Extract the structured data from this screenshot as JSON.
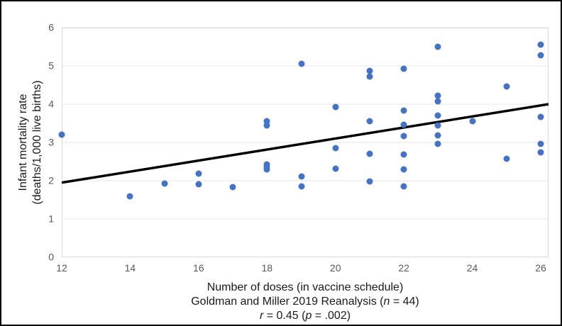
{
  "figure": {
    "border_color": "#000000",
    "background": "#ffffff"
  },
  "chart_data": {
    "type": "scatter",
    "xlabel": "Number of doses (in vaccine schedule)",
    "ylabel_lines": [
      "Infant mortality rate",
      "(deaths/1,000 live births)"
    ],
    "caption_lines": [
      [
        {
          "t": "Number of doses (in vaccine schedule)"
        }
      ],
      [
        {
          "t": "Goldman and Miller 2019 Reanalysis ("
        },
        {
          "t": "n",
          "i": true
        },
        {
          "t": " = 44)"
        }
      ],
      [
        {
          "t": "r",
          "i": true
        },
        {
          "t": " = 0.45 ("
        },
        {
          "t": "p",
          "i": true
        },
        {
          "t": " = .002)"
        }
      ]
    ],
    "xlim": [
      12,
      26.25
    ],
    "ylim": [
      0,
      6
    ],
    "x_ticks": [
      12,
      14,
      16,
      18,
      20,
      22,
      24,
      26
    ],
    "y_ticks": [
      0,
      1,
      2,
      3,
      4,
      5,
      6
    ],
    "grid": "horizontal",
    "legend": "none",
    "point_color": "#4472C4",
    "gridline_color": "#E4E4E4",
    "frame_color": "#D9D9D9",
    "tick_label_color": "#595959",
    "trendline": {
      "color": "#000000",
      "x1": 12,
      "y1": 1.95,
      "x2": 26.25,
      "y2": 4.0
    },
    "points": [
      {
        "x": 12,
        "y": 3.2
      },
      {
        "x": 14,
        "y": 1.6
      },
      {
        "x": 15,
        "y": 1.92
      },
      {
        "x": 16,
        "y": 2.18
      },
      {
        "x": 16,
        "y": 1.9
      },
      {
        "x": 17,
        "y": 1.83
      },
      {
        "x": 18,
        "y": 3.55
      },
      {
        "x": 18,
        "y": 3.45
      },
      {
        "x": 18,
        "y": 2.43
      },
      {
        "x": 18,
        "y": 2.37
      },
      {
        "x": 18,
        "y": 2.3
      },
      {
        "x": 19,
        "y": 5.05
      },
      {
        "x": 19,
        "y": 2.12
      },
      {
        "x": 19,
        "y": 1.85
      },
      {
        "x": 20,
        "y": 3.93
      },
      {
        "x": 20,
        "y": 2.85
      },
      {
        "x": 20,
        "y": 2.32
      },
      {
        "x": 21,
        "y": 4.87
      },
      {
        "x": 21,
        "y": 4.72
      },
      {
        "x": 21,
        "y": 3.56
      },
      {
        "x": 21,
        "y": 2.7
      },
      {
        "x": 21,
        "y": 1.98
      },
      {
        "x": 22,
        "y": 4.93
      },
      {
        "x": 22,
        "y": 3.84
      },
      {
        "x": 22,
        "y": 3.46
      },
      {
        "x": 22,
        "y": 3.17
      },
      {
        "x": 22,
        "y": 2.68
      },
      {
        "x": 22,
        "y": 2.3
      },
      {
        "x": 22,
        "y": 1.85
      },
      {
        "x": 23,
        "y": 5.5
      },
      {
        "x": 23,
        "y": 4.22
      },
      {
        "x": 23,
        "y": 4.08
      },
      {
        "x": 23,
        "y": 3.7
      },
      {
        "x": 23,
        "y": 3.45
      },
      {
        "x": 23,
        "y": 3.18
      },
      {
        "x": 23,
        "y": 2.97
      },
      {
        "x": 24,
        "y": 3.55
      },
      {
        "x": 25,
        "y": 4.47
      },
      {
        "x": 25,
        "y": 2.58
      },
      {
        "x": 26,
        "y": 5.55
      },
      {
        "x": 26,
        "y": 5.27
      },
      {
        "x": 26,
        "y": 3.67
      },
      {
        "x": 26,
        "y": 2.96
      },
      {
        "x": 26,
        "y": 2.74
      }
    ]
  }
}
